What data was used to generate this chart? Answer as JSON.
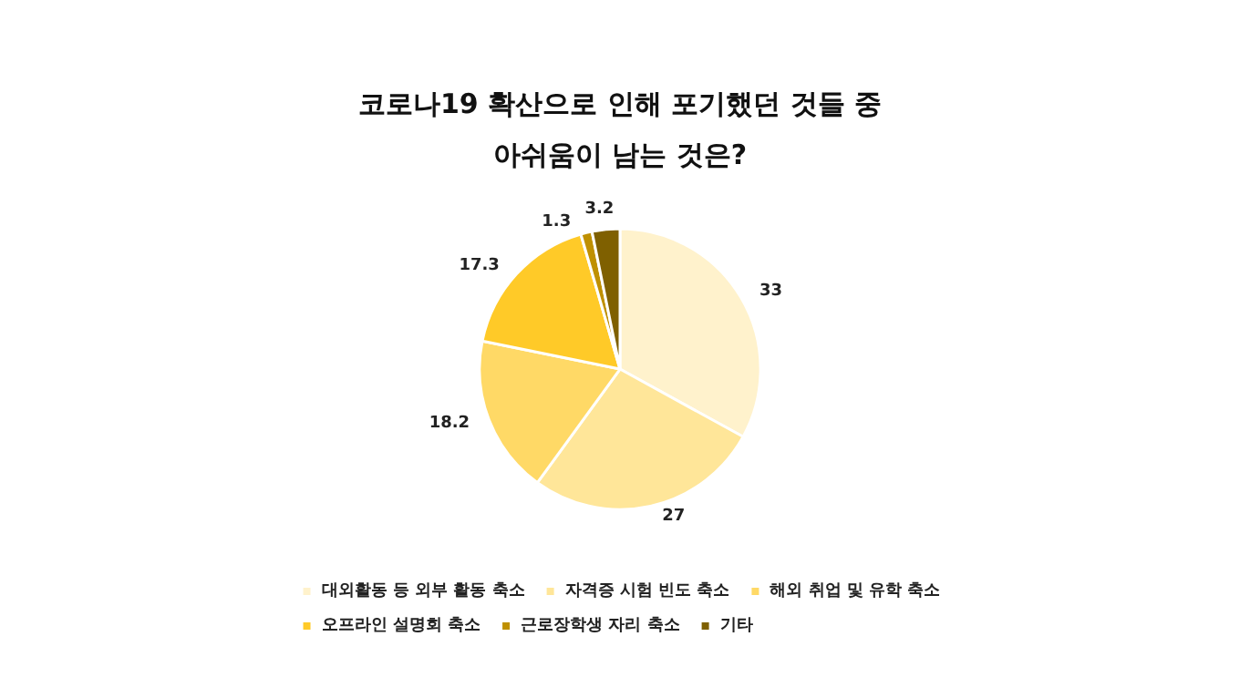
{
  "chart_data": {
    "type": "pie",
    "title": "코로나19 확산으로 인해 포기했던 것들 중\n아쉬움이 남는 것은?",
    "categories": [
      "대외활동 등 외부 활동 축소",
      "자격증 시험 빈도 축소",
      "해외 취업 및 유학 축소",
      "오프라인 설명회 축소",
      "근로장학생 자리 축소",
      "기타"
    ],
    "values": [
      33,
      27,
      18.2,
      17.3,
      1.3,
      3.2
    ],
    "colors": [
      "#fff2cc",
      "#ffe699",
      "#ffd966",
      "#ffca28",
      "#bf9000",
      "#7f6000"
    ],
    "data_labels": true,
    "legend": "bottom"
  }
}
